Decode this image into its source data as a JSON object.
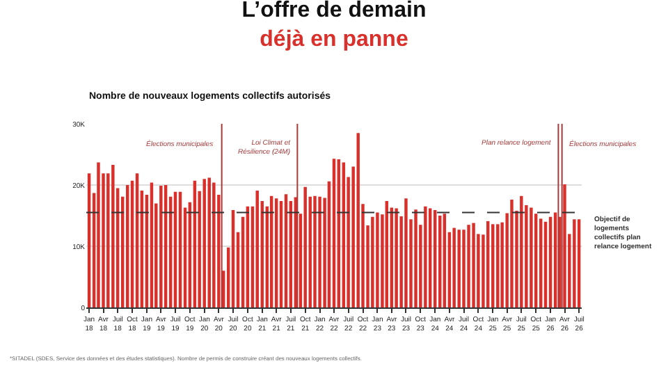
{
  "chart_data": {
    "type": "bar",
    "title": "L’offre de demain",
    "subtitle": "déjà en panne",
    "annotations": [
      "Nombre de nouveaux logements collectifs autorisés",
      "*SITADEL (SDES, Service des données et des études statistiques). Nombre de permis de construire créant des nouveaux logements collectifs."
    ],
    "x": [
      "2018-01",
      "2018-02",
      "2018-03",
      "2018-04",
      "2018-05",
      "2018-06",
      "2018-07",
      "2018-08",
      "2018-09",
      "2018-10",
      "2018-11",
      "2018-12",
      "2019-01",
      "2019-02",
      "2019-03",
      "2019-04",
      "2019-05",
      "2019-06",
      "2019-07",
      "2019-08",
      "2019-09",
      "2019-10",
      "2019-11",
      "2019-12",
      "2020-01",
      "2020-02",
      "2020-03",
      "2020-04",
      "2020-05",
      "2020-06",
      "2020-07",
      "2020-08",
      "2020-09",
      "2020-10",
      "2020-11",
      "2020-12",
      "2021-01",
      "2021-02",
      "2021-03",
      "2021-04",
      "2021-05",
      "2021-06",
      "2021-07",
      "2021-08",
      "2021-09",
      "2021-10",
      "2021-11",
      "2021-12",
      "2022-01",
      "2022-02",
      "2022-03",
      "2022-04",
      "2022-05",
      "2022-06",
      "2022-07",
      "2022-08",
      "2022-09",
      "2022-10",
      "2022-11",
      "2022-12",
      "2023-01",
      "2023-02",
      "2023-03",
      "2023-04",
      "2023-05",
      "2023-06",
      "2023-07",
      "2023-08",
      "2023-09",
      "2023-10",
      "2023-11",
      "2023-12",
      "2024-01",
      "2024-02",
      "2024-03",
      "2024-04",
      "2024-05",
      "2024-06",
      "2024-07",
      "2024-08",
      "2024-09",
      "2024-10",
      "2024-11",
      "2024-12",
      "2025-01",
      "2025-02",
      "2025-03",
      "2025-04",
      "2025-05",
      "2025-06",
      "2025-07",
      "2025-08",
      "2025-09",
      "2025-10",
      "2025-11",
      "2025-12",
      "2026-01",
      "2026-02",
      "2026-03",
      "2026-04",
      "2026-05",
      "2026-06",
      "2026-07"
    ],
    "series": [
      {
        "color": "#d9302b",
        "values": [
          21.9,
          18.7,
          23.7,
          21.9,
          21.9,
          23.3,
          19.5,
          18.1,
          20.0,
          20.7,
          21.9,
          19.1,
          18.4,
          20.4,
          17.0,
          19.9,
          20.0,
          18.1,
          18.9,
          18.9,
          16.3,
          17.2,
          20.7,
          19.0,
          21.0,
          21.2,
          20.4,
          18.4,
          6.0,
          9.8,
          15.9,
          12.3,
          14.8,
          16.5,
          16.5,
          19.1,
          17.4,
          16.5,
          18.2,
          17.8,
          17.4,
          18.5,
          17.4,
          18.0,
          15.3,
          19.7,
          18.1,
          18.2,
          18.1,
          17.9,
          20.6,
          24.3,
          24.2,
          23.7,
          21.3,
          23.0,
          28.5,
          16.9,
          13.4,
          14.8,
          15.5,
          15.2,
          17.4,
          16.3,
          16.2,
          14.9,
          17.8,
          14.4,
          16.0,
          13.5,
          16.5,
          16.2,
          15.9,
          15.0,
          15.3,
          12.3,
          13.0,
          12.7,
          12.7,
          13.5,
          13.8,
          12.0,
          11.9,
          14.1,
          13.6,
          13.6,
          13.9,
          15.4,
          17.6,
          15.8,
          18.2,
          16.7,
          16.3,
          15.3,
          14.5,
          14.0,
          14.8,
          15.5,
          14.8,
          20.1,
          12.0,
          14.4,
          14.4
        ]
      }
    ],
    "xlim": [
      "2017-12-14",
      "2026-07-18"
    ],
    "xticks": [
      {
        "value": "2018-01",
        "label": "Jan\n18"
      },
      {
        "value": "2018-04",
        "label": "Avr\n18"
      },
      {
        "value": "2018-07",
        "label": "Juil\n18"
      },
      {
        "value": "2018-10",
        "label": "Oct\n18"
      },
      {
        "value": "2019-01",
        "label": "Jan\n19"
      },
      {
        "value": "2019-04",
        "label": "Avr\n19"
      },
      {
        "value": "2019-07",
        "label": "Juil\n19"
      },
      {
        "value": "2019-10",
        "label": "Oct\n19"
      },
      {
        "value": "2020-01",
        "label": "Jan\n20"
      },
      {
        "value": "2020-04",
        "label": "Avr\n20"
      },
      {
        "value": "2020-07",
        "label": "Juil\n20"
      },
      {
        "value": "2020-10",
        "label": "Oct\n20"
      },
      {
        "value": "2021-01",
        "label": "Jan\n21"
      },
      {
        "value": "2021-04",
        "label": "Avr\n21"
      },
      {
        "value": "2021-07",
        "label": "Juil\n21"
      },
      {
        "value": "2021-10",
        "label": "Oct\n21"
      },
      {
        "value": "2022-01",
        "label": "Jan\n22"
      },
      {
        "value": "2022-04",
        "label": "Avr\n22"
      },
      {
        "value": "2022-07",
        "label": "Juil\n22"
      },
      {
        "value": "2022-10",
        "label": "Oct\n22"
      },
      {
        "value": "2023-01",
        "label": "Jan\n23"
      },
      {
        "value": "2023-04",
        "label": "Avr\n23"
      },
      {
        "value": "2023-07",
        "label": "Juil\n23"
      },
      {
        "value": "2023-10",
        "label": "Oct\n23"
      },
      {
        "value": "2024-01",
        "label": "Jan\n24"
      },
      {
        "value": "2024-04",
        "label": "Avr\n24"
      },
      {
        "value": "2024-07",
        "label": "Juil\n24"
      },
      {
        "value": "2024-10",
        "label": "Oct\n24"
      },
      {
        "value": "2025-01",
        "label": "Jan\n25"
      },
      {
        "value": "2025-04",
        "label": "Avr\n25"
      },
      {
        "value": "2025-07",
        "label": "Juil\n25"
      },
      {
        "value": "2025-10",
        "label": "Oct\n25"
      },
      {
        "value": "2026-01",
        "label": "Jan\n26"
      },
      {
        "value": "2026-04",
        "label": "Avr\n26"
      },
      {
        "value": "2026-07",
        "label": "Juil\n26"
      }
    ],
    "ylim": [
      0,
      30
    ],
    "yticks": [
      0,
      {
        "value": 10,
        "label": "10K"
      },
      {
        "value": 20,
        "label": "20K"
      },
      {
        "value": 30,
        "label": "30K"
      }
    ],
    "grid": "y",
    "ref_lines": [
      {
        "axis": "x",
        "value": "2020-04-20",
        "label": "Élections municipales",
        "color": "#a83a3a"
      },
      {
        "axis": "x",
        "value": "2021-08-12",
        "label": "Loi Climat et\nRésilience (24M)",
        "color": "#a83a3a"
      },
      {
        "axis": "x",
        "value": "2026-02-20",
        "label": "Plan relance logement",
        "color": "#a83a3a"
      },
      {
        "axis": "x",
        "value": "2026-03-15",
        "label": "Élections municipales",
        "color": "#a83a3a"
      },
      {
        "axis": "y",
        "value": 15.5,
        "label": "Objectif de\nlogements\ncollectifs plan\nrelance logement",
        "color": "#333333",
        "line_style": "dashed"
      }
    ]
  }
}
